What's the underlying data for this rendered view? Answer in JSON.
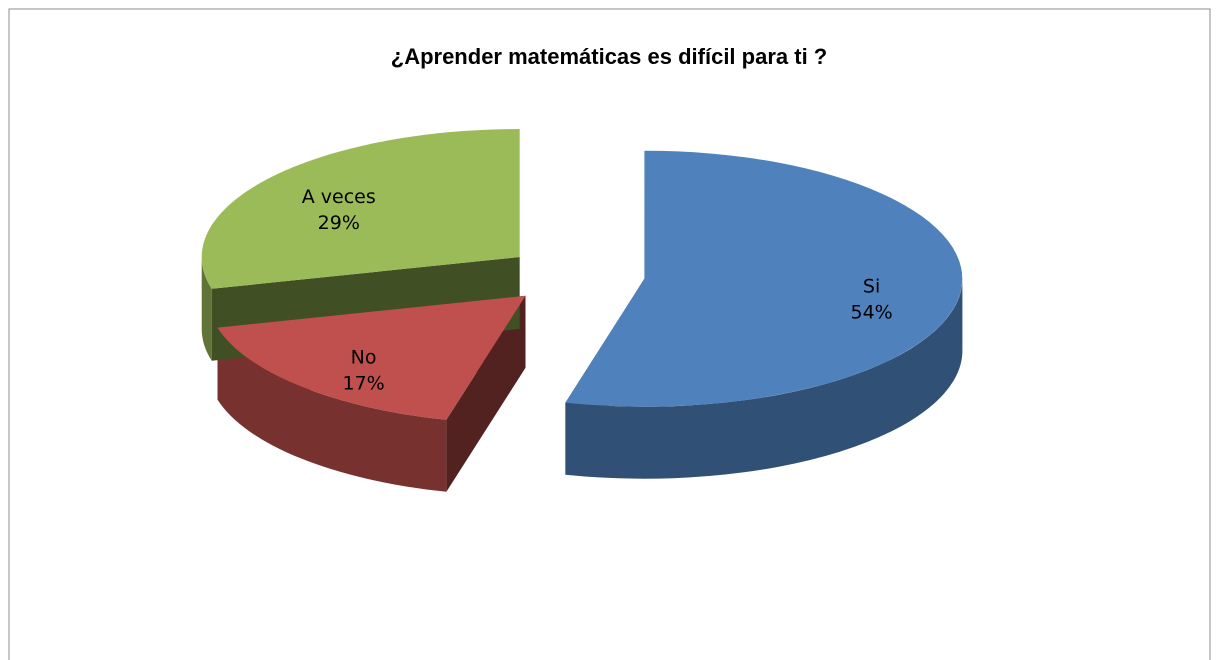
{
  "chart_data": {
    "type": "pie3d",
    "title": "¿Aprender matemáticas es difícil para ti ?",
    "categories": [
      "Si",
      "No",
      "A veces"
    ],
    "values": [
      54,
      17,
      29
    ],
    "value_labels": [
      "54%",
      "17%",
      "29%"
    ],
    "colors": [
      "#4f81bd",
      "#c0504d",
      "#9bbb59"
    ],
    "exploded": true
  }
}
